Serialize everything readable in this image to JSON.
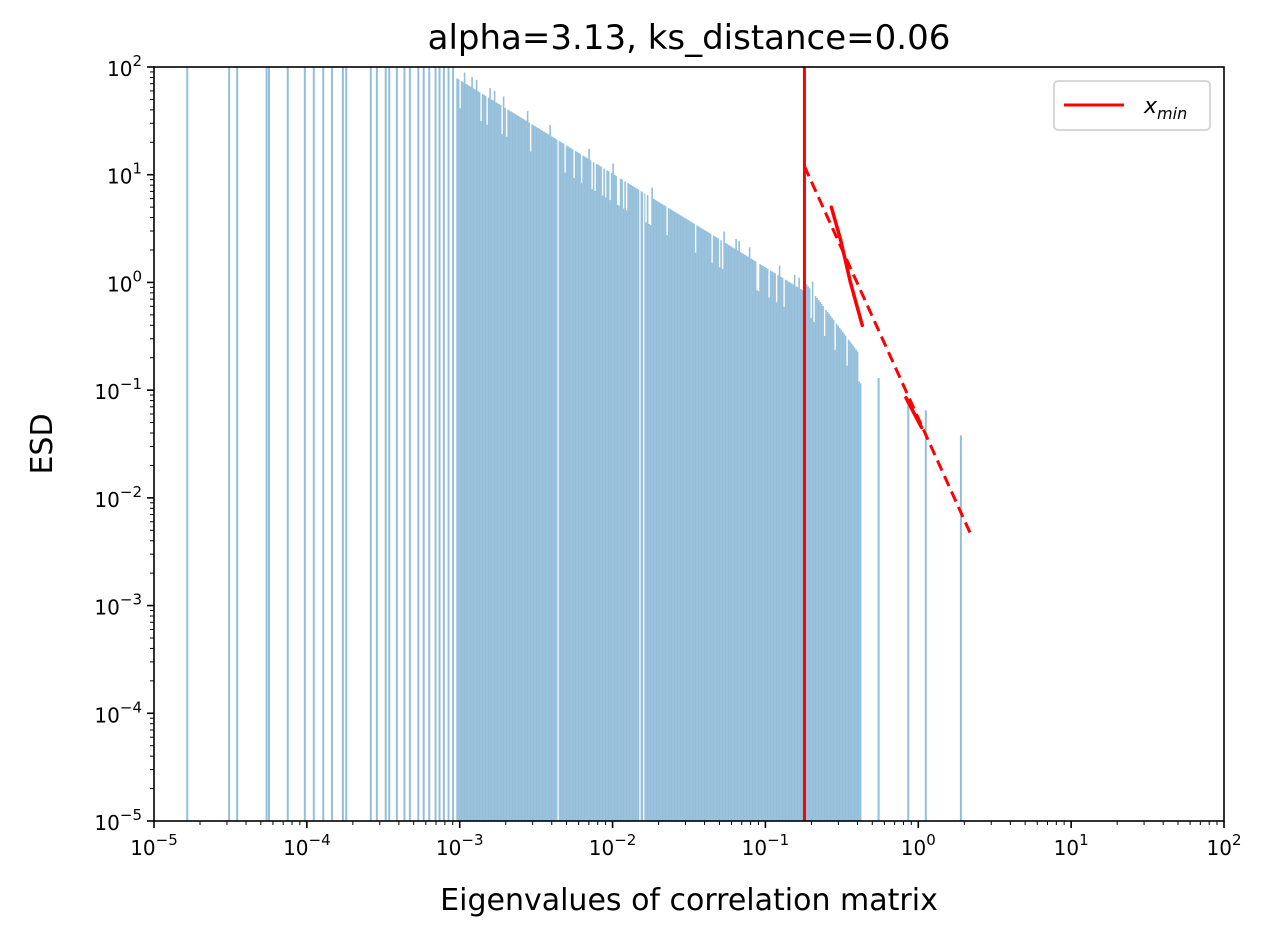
{
  "chart_data": {
    "type": "bar",
    "title": "alpha=3.13, ks_distance=0.06",
    "xlabel": "Eigenvalues of correlation matrix",
    "ylabel": "ESD",
    "xscale": "log",
    "yscale": "log",
    "xlim": [
      1e-05,
      100
    ],
    "ylim": [
      1e-05,
      100
    ],
    "x_ticks": [
      {
        "base": "10",
        "exp": "−5"
      },
      {
        "base": "10",
        "exp": "−4"
      },
      {
        "base": "10",
        "exp": "−3"
      },
      {
        "base": "10",
        "exp": "−2"
      },
      {
        "base": "10",
        "exp": "−1"
      },
      {
        "base": "10",
        "exp": "0"
      },
      {
        "base": "10",
        "exp": "1"
      },
      {
        "base": "10",
        "exp": "2"
      }
    ],
    "y_ticks": [
      {
        "base": "10",
        "exp": "−5"
      },
      {
        "base": "10",
        "exp": "−4"
      },
      {
        "base": "10",
        "exp": "−3"
      },
      {
        "base": "10",
        "exp": "−2"
      },
      {
        "base": "10",
        "exp": "−1"
      },
      {
        "base": "10",
        "exp": "0"
      },
      {
        "base": "10",
        "exp": "1"
      },
      {
        "base": "10",
        "exp": "2"
      }
    ],
    "histogram": {
      "color": "#94bfdb",
      "fill_start": 0.00095,
      "fill_end": 0.42,
      "density_at_0_001": 75,
      "density_exponent": 0.87,
      "tail_start": 0.18,
      "tail_value": 1.0,
      "tail_end": 0.45,
      "tail_end_value": 0.18,
      "sparse_bars": [
        {
          "x": 1.65e-05,
          "y": 100
        },
        {
          "x": 3.1e-05,
          "y": 100
        },
        {
          "x": 3.5e-05,
          "y": 100
        },
        {
          "x": 5.45e-05,
          "y": 100
        },
        {
          "x": 5.65e-05,
          "y": 100
        },
        {
          "x": 7.5e-05,
          "y": 100
        },
        {
          "x": 9.7e-05,
          "y": 100
        },
        {
          "x": 0.000111,
          "y": 100
        },
        {
          "x": 0.000128,
          "y": 100
        },
        {
          "x": 0.000146,
          "y": 100
        },
        {
          "x": 0.000172,
          "y": 100
        },
        {
          "x": 0.000181,
          "y": 100
        },
        {
          "x": 0.000262,
          "y": 100
        },
        {
          "x": 0.000287,
          "y": 100
        },
        {
          "x": 0.000328,
          "y": 100
        },
        {
          "x": 0.000346,
          "y": 100
        },
        {
          "x": 0.000388,
          "y": 100
        },
        {
          "x": 0.000435,
          "y": 100
        },
        {
          "x": 0.000472,
          "y": 100
        },
        {
          "x": 0.000536,
          "y": 100
        },
        {
          "x": 0.000581,
          "y": 100
        },
        {
          "x": 0.000632,
          "y": 100
        },
        {
          "x": 0.000695,
          "y": 100
        },
        {
          "x": 0.000738,
          "y": 100
        },
        {
          "x": 0.000788,
          "y": 100
        },
        {
          "x": 0.000845,
          "y": 100
        },
        {
          "x": 0.000905,
          "y": 100
        },
        {
          "x": 0.55,
          "y": 0.13
        },
        {
          "x": 0.86,
          "y": 0.085
        },
        {
          "x": 1.12,
          "y": 0.065
        },
        {
          "x": 1.9,
          "y": 0.038
        }
      ],
      "gaps": [
        0.0044,
        0.0151,
        0.016
      ]
    },
    "xmin_line": {
      "x": 0.18,
      "color": "#ff0000"
    },
    "fit_line": {
      "x_start": 0.18,
      "x_end": 2.25,
      "y_start": 12.0,
      "y_end": 0.0043,
      "color": "#ff0000",
      "style": "dashed"
    },
    "fit_segments": [
      {
        "x1": 0.27,
        "y1": 5.0,
        "x2": 0.31,
        "y2": 2.5
      },
      {
        "x1": 0.31,
        "y1": 2.5,
        "x2": 0.36,
        "y2": 1.0
      },
      {
        "x1": 0.36,
        "y1": 1.0,
        "x2": 0.43,
        "y2": 0.4
      },
      {
        "x1": 0.83,
        "y1": 0.085,
        "x2": 1.05,
        "y2": 0.045
      }
    ],
    "legend": {
      "position": "upper right",
      "entries": [
        {
          "label_base": "x",
          "label_sub": "min",
          "color": "#ff0000"
        }
      ]
    }
  }
}
